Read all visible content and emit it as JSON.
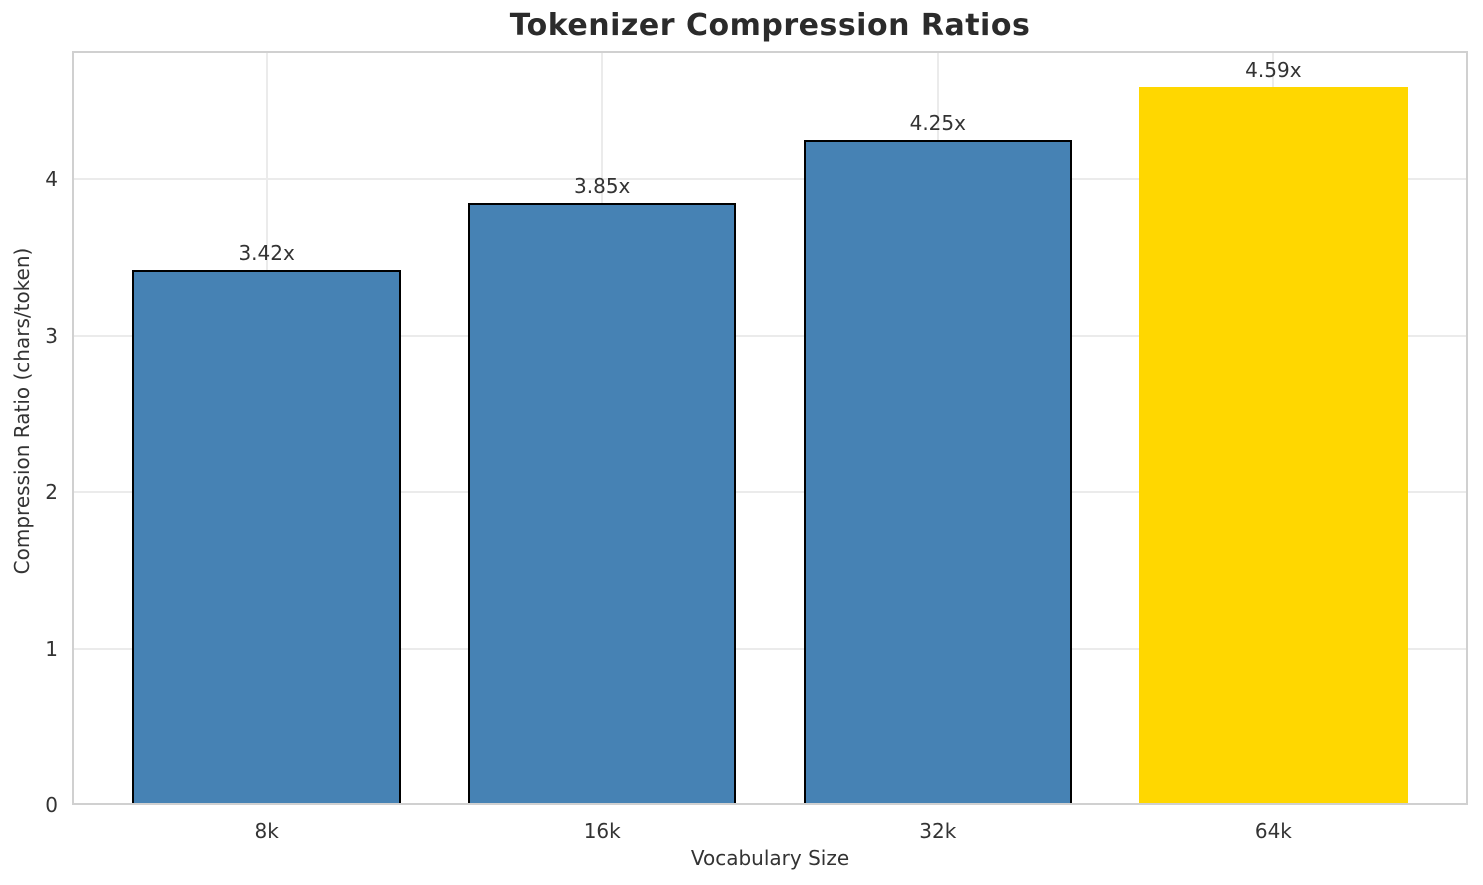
{
  "chart_data": {
    "type": "bar",
    "title": "Tokenizer Compression Ratios",
    "xlabel": "Vocabulary Size",
    "ylabel": "Compression Ratio (chars/token)",
    "categories": [
      "8k",
      "16k",
      "32k",
      "64k"
    ],
    "values": [
      3.42,
      3.85,
      4.25,
      4.59
    ],
    "bar_labels": [
      "3.42x",
      "3.85x",
      "4.25x",
      "4.59x"
    ],
    "yticks": [
      0,
      1,
      2,
      3,
      4
    ],
    "ylim": [
      0,
      4.82
    ],
    "xlim": [
      -0.58,
      3.58
    ],
    "bar_width": 0.8,
    "highlight_index": 3,
    "grid": "both",
    "legend": "none",
    "colors": {
      "bar_default": "#4682B4",
      "bar_highlight": "#FFD700",
      "bar_edge": "#000000",
      "grid": "#ebebeb",
      "spine": "#d0d0d0",
      "title": "#2b2b2b",
      "text": "#333333"
    }
  }
}
